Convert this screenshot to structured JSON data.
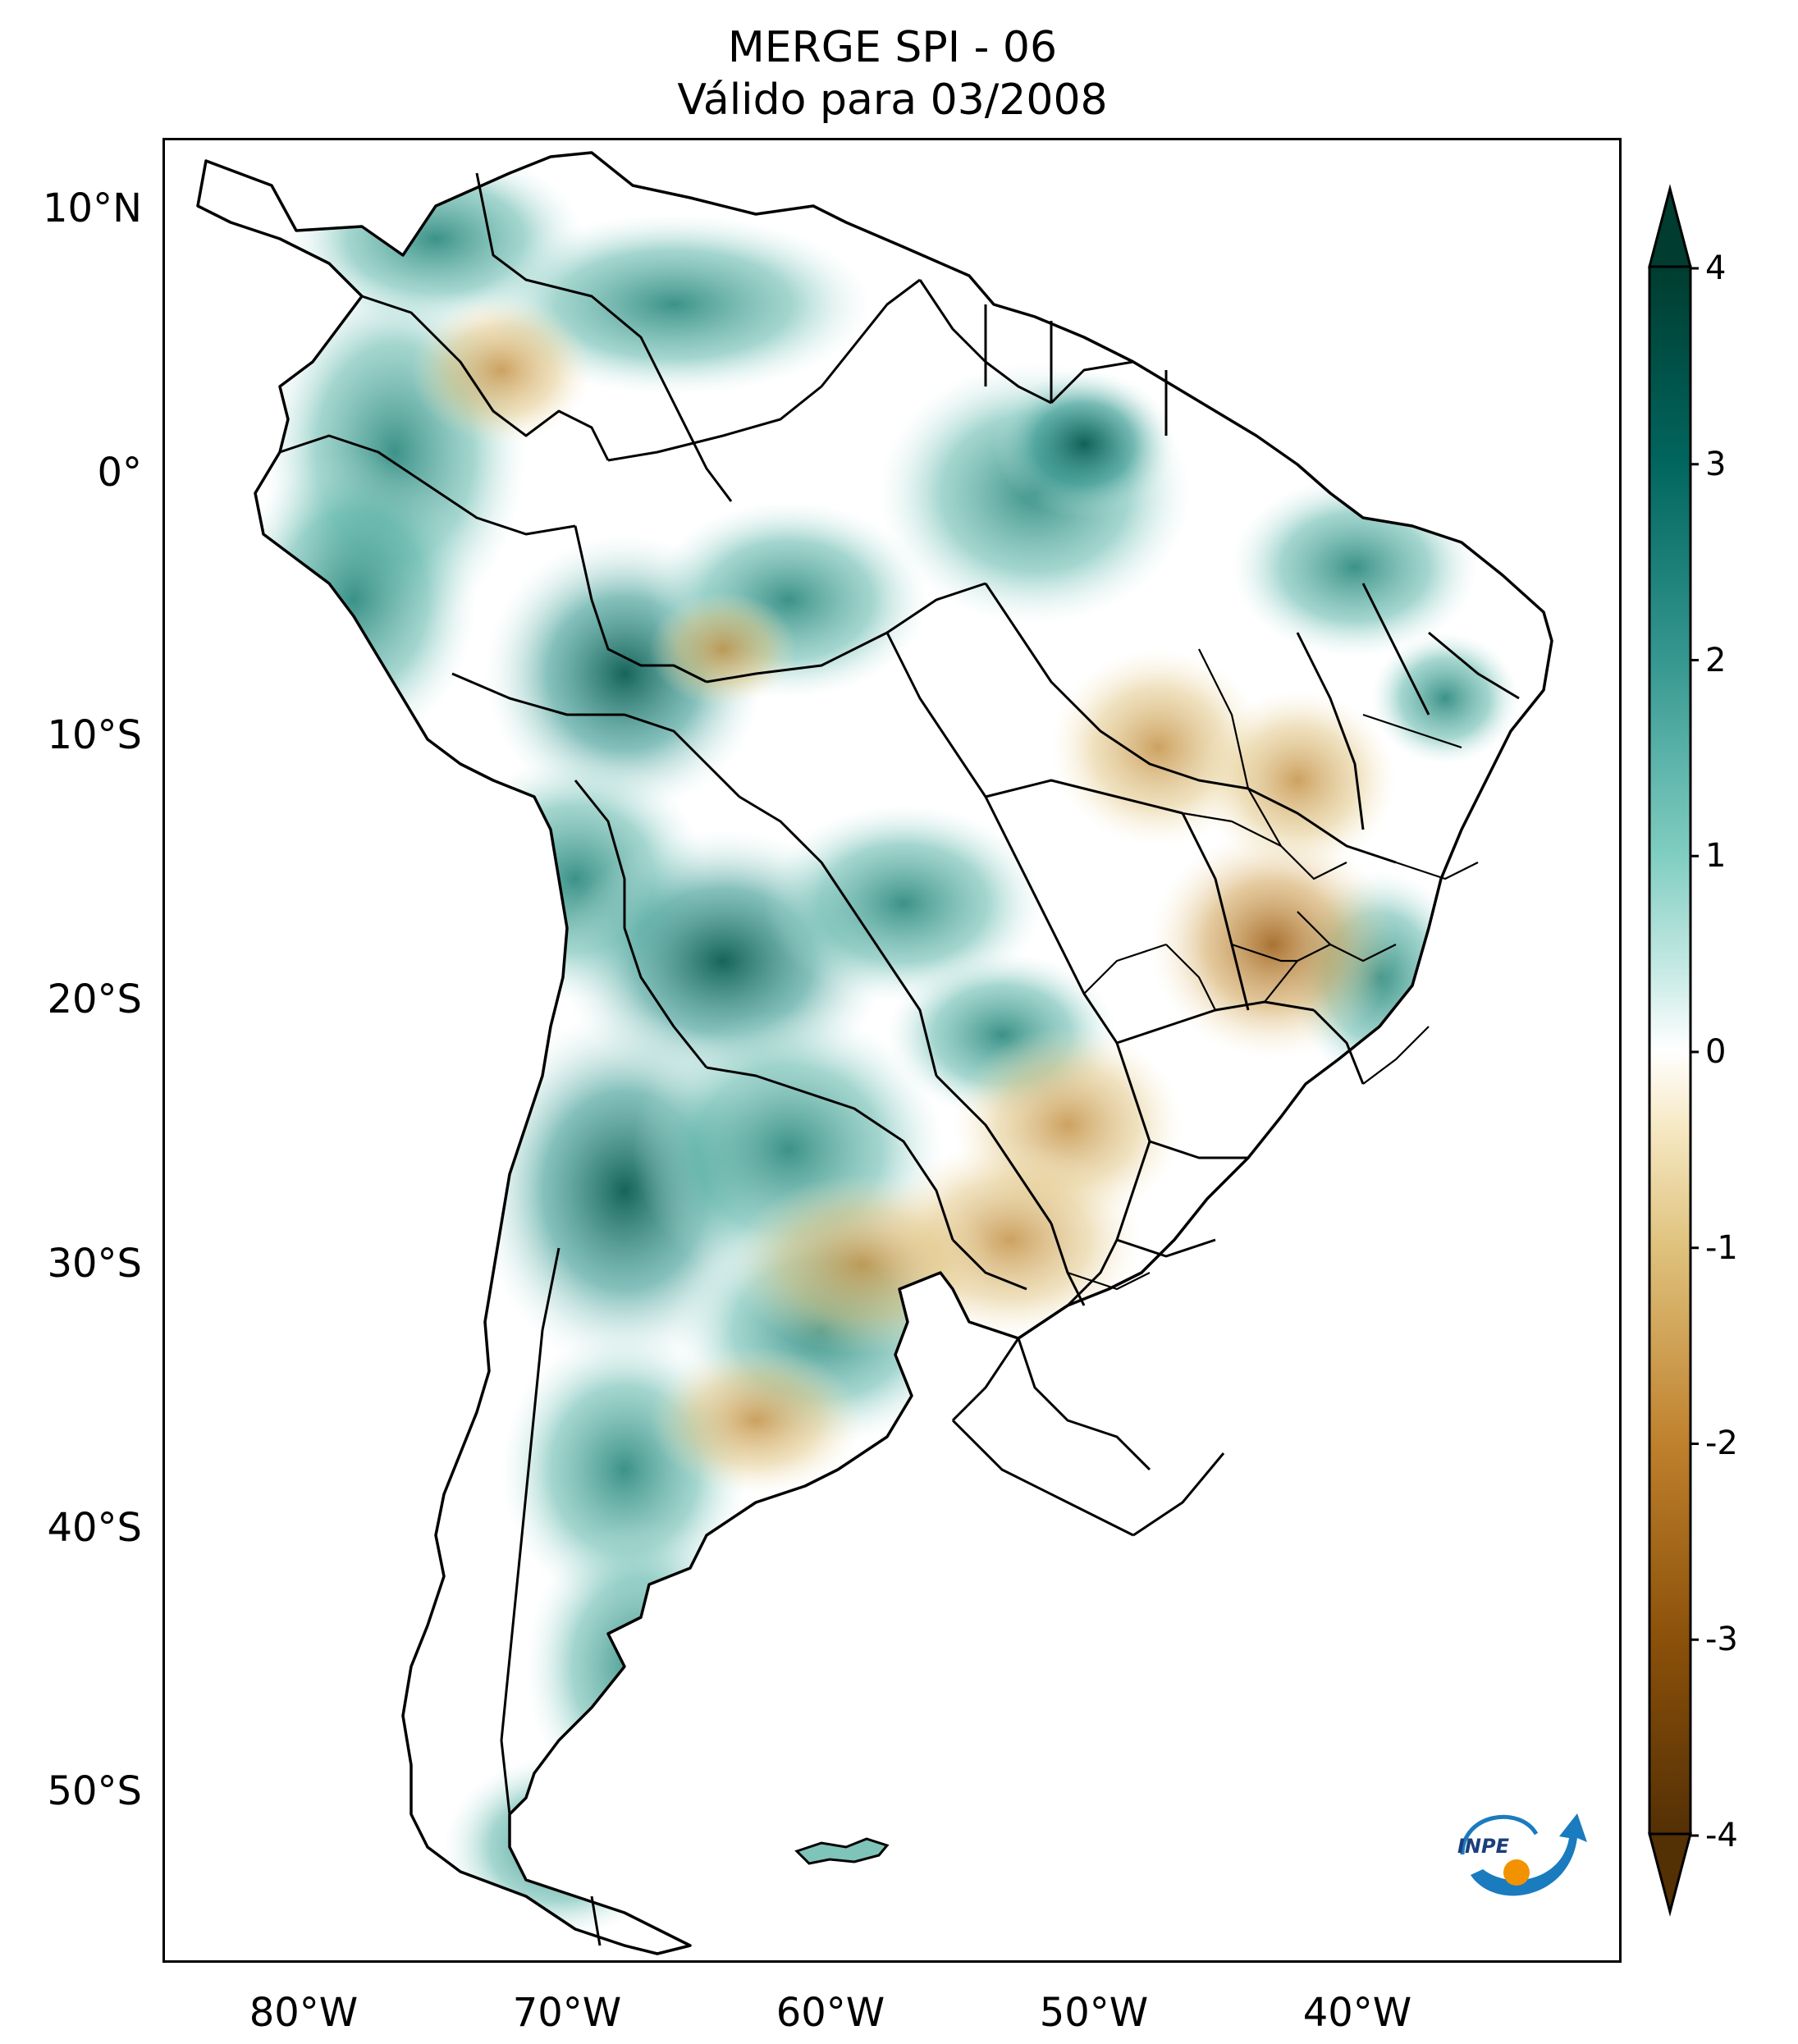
{
  "title": {
    "line1": "MERGE   SPI - 06",
    "line2": "Válido para 03/2008"
  },
  "map": {
    "lat_labels": [
      "10°N",
      "0°",
      "10°S",
      "20°S",
      "30°S",
      "40°S",
      "50°S"
    ],
    "lon_labels": [
      "80°W",
      "70°W",
      "60°W",
      "50°W",
      "40°W"
    ],
    "extent_lon": [
      -85,
      -30
    ],
    "extent_lat": [
      -56,
      13
    ]
  },
  "colorbar": {
    "ticks": [
      "4",
      "3",
      "2",
      "1",
      "0",
      "-1",
      "-2",
      "-3",
      "-4"
    ],
    "range": [
      -4,
      4
    ],
    "colors": {
      "wet_max": "#003c30",
      "wet_mid": "#35978f",
      "wet_low": "#c7eae5",
      "neutral": "#ffffff",
      "dry_low": "#f6e8c3",
      "dry_mid": "#bf812d",
      "dry_max": "#543005"
    }
  },
  "logo": {
    "text": "INPE"
  }
}
